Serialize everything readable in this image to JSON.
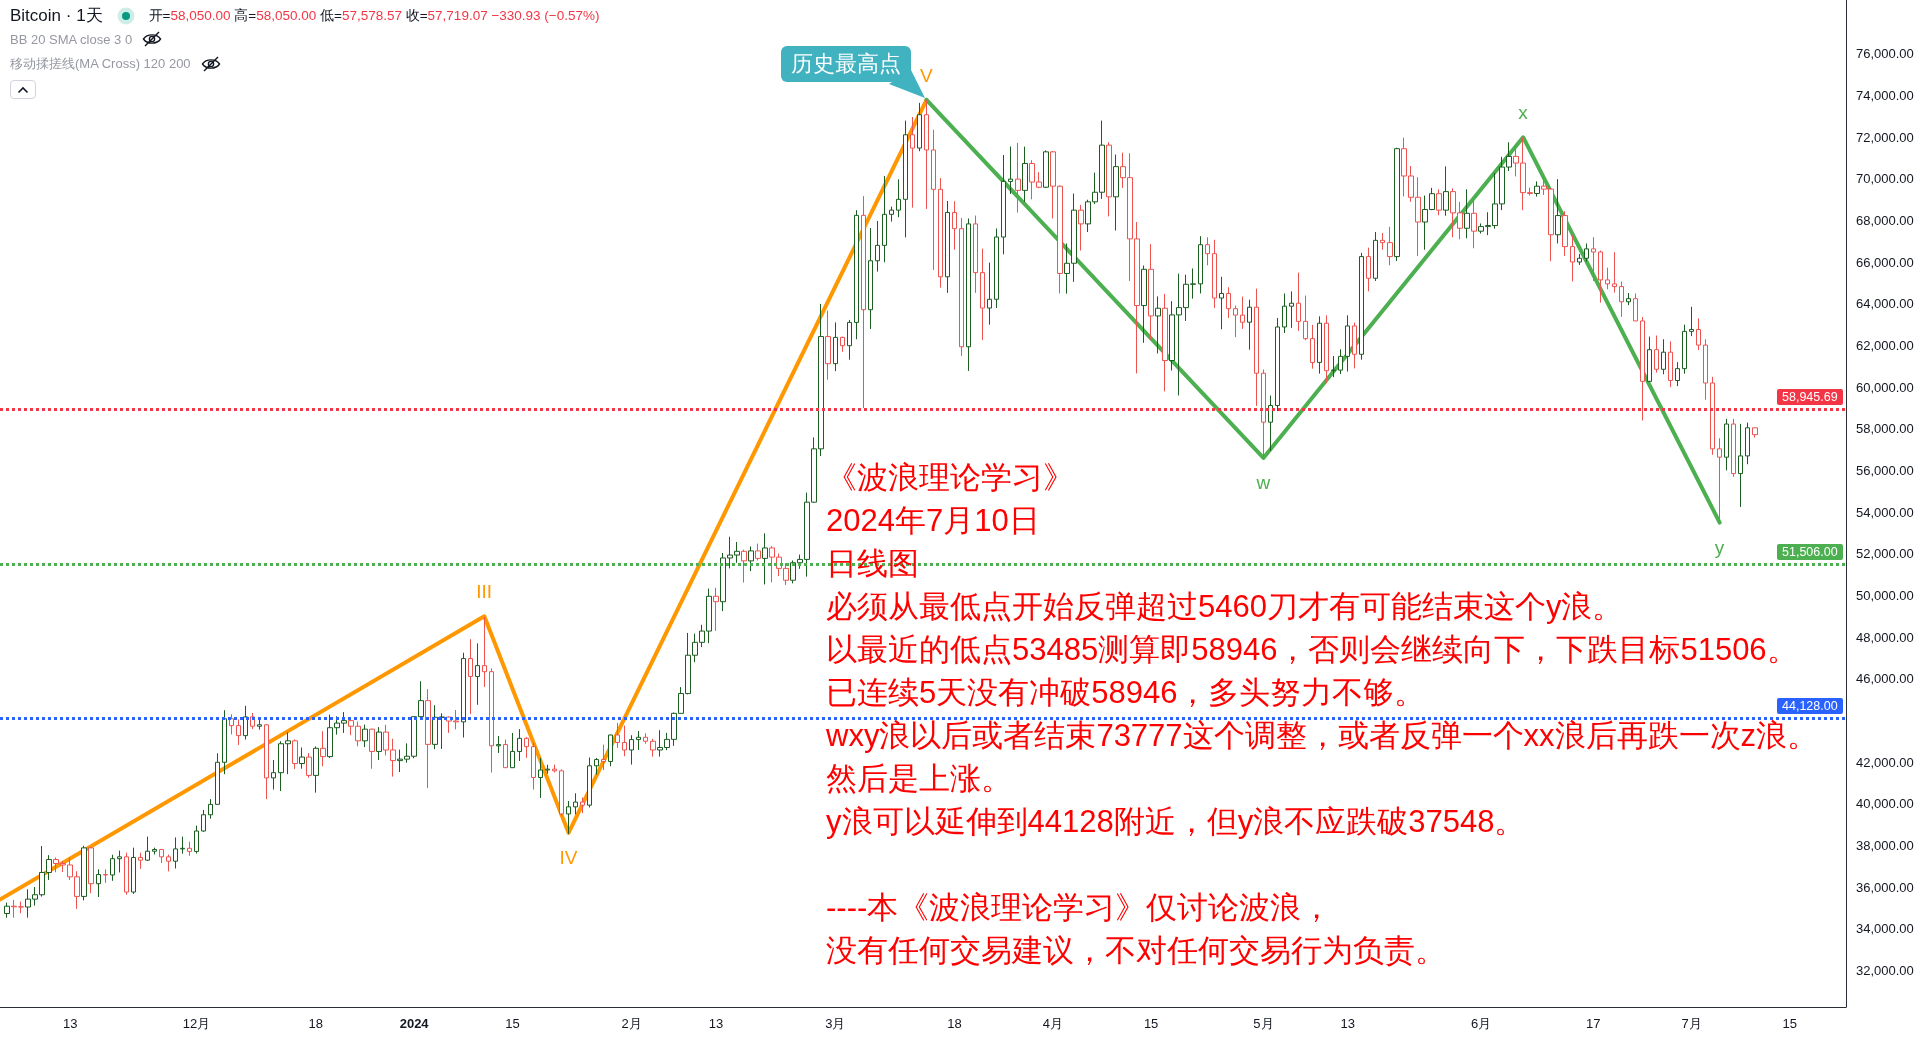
{
  "chart_data": {
    "type": "candlestick",
    "title": "Bitcoin · 1天",
    "annotations": [
      "开=58,050.00 高=58,050.00 低=57,578.57 收=57,719.07 −330.93 (−0.57%)",
      "BB 20 SMA close 3 0",
      "移动揉搓线(MA Cross) 120 200",
      "《波浪理论学习》",
      "2024年7月10日",
      "日线图",
      "必须从最低点开始反弹超过5460刀才有可能结束这个y浪。",
      "以最近的低点53485测算即58946，否则会继续向下，下跌目标51506。",
      "已连续5天没有冲破58946，多头努力不够。",
      "wxy浪以后或者结束73777这个调整，或者反弹一个xx浪后再跌一次z浪。",
      "然后是上涨。",
      "y浪可以延伸到44128附近，但y浪不应跌破37548。",
      "----本《波浪理论学习》仅讨论波浪，",
      "没有任何交易建议，不对任何交易行为负责。",
      {
        "text": "III",
        "x": "2024-01-11",
        "y": 49000
      },
      {
        "text": "IV",
        "x": "2024-01-23",
        "y": 38600
      },
      {
        "text": "V",
        "x": "2024-03-14",
        "y": 73800
      },
      {
        "text": "历史最高点",
        "x": "2024-03-14",
        "y": 73800
      },
      {
        "text": "w",
        "x": "2024-05-01",
        "y": 56600
      },
      {
        "text": "x",
        "x": "2024-06-07",
        "y": 72000
      },
      {
        "text": "y",
        "x": "2024-07-05",
        "y": 53500
      }
    ],
    "x": [
      "2023-11-04",
      "2023-11-05",
      "2023-11-06",
      "2023-11-07",
      "2023-11-08",
      "2023-11-09",
      "2023-11-10",
      "2023-11-11",
      "2023-11-12",
      "2023-11-13",
      "2023-11-14",
      "2023-11-15",
      "2023-11-16",
      "2023-11-17",
      "2023-11-18",
      "2023-11-19",
      "2023-11-20",
      "2023-11-21",
      "2023-11-22",
      "2023-11-23",
      "2023-11-24",
      "2023-11-25",
      "2023-11-26",
      "2023-11-27",
      "2023-11-28",
      "2023-11-29",
      "2023-11-30",
      "2023-12-01",
      "2023-12-02",
      "2023-12-03",
      "2023-12-04",
      "2023-12-05",
      "2023-12-06",
      "2023-12-07",
      "2023-12-08",
      "2023-12-09",
      "2023-12-10",
      "2023-12-11",
      "2023-12-12",
      "2023-12-13",
      "2023-12-14",
      "2023-12-15",
      "2023-12-16",
      "2023-12-17",
      "2023-12-18",
      "2023-12-19",
      "2023-12-20",
      "2023-12-21",
      "2023-12-22",
      "2023-12-23",
      "2023-12-24",
      "2023-12-25",
      "2023-12-26",
      "2023-12-27",
      "2023-12-28",
      "2023-12-29",
      "2023-12-30",
      "2023-12-31",
      "2024-01-01",
      "2024-01-02",
      "2024-01-03",
      "2024-01-04",
      "2024-01-05",
      "2024-01-06",
      "2024-01-07",
      "2024-01-08",
      "2024-01-09",
      "2024-01-10",
      "2024-01-11",
      "2024-01-12",
      "2024-01-13",
      "2024-01-14",
      "2024-01-15",
      "2024-01-16",
      "2024-01-17",
      "2024-01-18",
      "2024-01-19",
      "2024-01-20",
      "2024-01-21",
      "2024-01-22",
      "2024-01-23",
      "2024-01-24",
      "2024-01-25",
      "2024-01-26",
      "2024-01-27",
      "2024-01-28",
      "2024-01-29",
      "2024-01-30",
      "2024-01-31",
      "2024-02-01",
      "2024-02-02",
      "2024-02-03",
      "2024-02-04",
      "2024-02-05",
      "2024-02-06",
      "2024-02-07",
      "2024-02-08",
      "2024-02-09",
      "2024-02-10",
      "2024-02-11",
      "2024-02-12",
      "2024-02-13",
      "2024-02-14",
      "2024-02-15",
      "2024-02-16",
      "2024-02-17",
      "2024-02-18",
      "2024-02-19",
      "2024-02-20",
      "2024-02-21",
      "2024-02-22",
      "2024-02-23",
      "2024-02-24",
      "2024-02-25",
      "2024-02-26",
      "2024-02-27",
      "2024-02-28",
      "2024-02-29",
      "2024-03-01",
      "2024-03-02",
      "2024-03-03",
      "2024-03-04",
      "2024-03-05",
      "2024-03-06",
      "2024-03-07",
      "2024-03-08",
      "2024-03-09",
      "2024-03-10",
      "2024-03-11",
      "2024-03-12",
      "2024-03-13",
      "2024-03-14",
      "2024-03-15",
      "2024-03-16",
      "2024-03-17",
      "2024-03-18",
      "2024-03-19",
      "2024-03-20",
      "2024-03-21",
      "2024-03-22",
      "2024-03-23",
      "2024-03-24",
      "2024-03-25",
      "2024-03-26",
      "2024-03-27",
      "2024-03-28",
      "2024-03-29",
      "2024-03-30",
      "2024-03-31",
      "2024-04-01",
      "2024-04-02",
      "2024-04-03",
      "2024-04-04",
      "2024-04-05",
      "2024-04-06",
      "2024-04-07",
      "2024-04-08",
      "2024-04-09",
      "2024-04-10",
      "2024-04-11",
      "2024-04-12",
      "2024-04-13",
      "2024-04-14",
      "2024-04-15",
      "2024-04-16",
      "2024-04-17",
      "2024-04-18",
      "2024-04-19",
      "2024-04-20",
      "2024-04-21",
      "2024-04-22",
      "2024-04-23",
      "2024-04-24",
      "2024-04-25",
      "2024-04-26",
      "2024-04-27",
      "2024-04-28",
      "2024-04-29",
      "2024-04-30",
      "2024-05-01",
      "2024-05-02",
      "2024-05-03",
      "2024-05-04",
      "2024-05-05",
      "2024-05-06",
      "2024-05-07",
      "2024-05-08",
      "2024-05-09",
      "2024-05-10",
      "2024-05-11",
      "2024-05-12",
      "2024-05-13",
      "2024-05-14",
      "2024-05-15",
      "2024-05-16",
      "2024-05-17",
      "2024-05-18",
      "2024-05-19",
      "2024-05-20",
      "2024-05-21",
      "2024-05-22",
      "2024-05-23",
      "2024-05-24",
      "2024-05-25",
      "2024-05-26",
      "2024-05-27",
      "2024-05-28",
      "2024-05-29",
      "2024-05-30",
      "2024-05-31",
      "2024-06-01",
      "2024-06-02",
      "2024-06-03",
      "2024-06-04",
      "2024-06-05",
      "2024-06-06",
      "2024-06-07",
      "2024-06-08",
      "2024-06-09",
      "2024-06-10",
      "2024-06-11",
      "2024-06-12",
      "2024-06-13",
      "2024-06-14",
      "2024-06-15",
      "2024-06-16",
      "2024-06-17",
      "2024-06-18",
      "2024-06-19",
      "2024-06-20",
      "2024-06-21",
      "2024-06-22",
      "2024-06-23",
      "2024-06-24",
      "2024-06-25",
      "2024-06-26",
      "2024-06-27",
      "2024-06-28",
      "2024-06-29",
      "2024-06-30",
      "2024-07-01",
      "2024-07-02",
      "2024-07-03",
      "2024-07-04",
      "2024-07-05",
      "2024-07-06",
      "2024-07-07",
      "2024-07-08",
      "2024-07-09",
      "2024-07-10"
    ],
    "ohlc": [
      [
        34730,
        35250,
        34530,
        35080
      ],
      [
        35080,
        35380,
        34530,
        35050
      ],
      [
        35050,
        35300,
        34740,
        35040
      ],
      [
        35040,
        35890,
        34530,
        35420
      ],
      [
        35420,
        36000,
        35110,
        35630
      ],
      [
        35630,
        37970,
        35540,
        36700
      ],
      [
        36700,
        37530,
        36340,
        37320
      ],
      [
        37320,
        37420,
        36710,
        37130
      ],
      [
        37130,
        37230,
        36720,
        37060
      ],
      [
        37060,
        37420,
        36340,
        36490
      ],
      [
        36490,
        36760,
        34950,
        35550
      ],
      [
        35550,
        37980,
        35360,
        37880
      ],
      [
        37880,
        37930,
        35700,
        36160
      ],
      [
        36160,
        36850,
        35520,
        36600
      ],
      [
        36600,
        36850,
        36200,
        36580
      ],
      [
        36580,
        37550,
        36300,
        37360
      ],
      [
        37360,
        37750,
        36700,
        37450
      ],
      [
        37450,
        37650,
        35630,
        35760
      ],
      [
        35760,
        37890,
        35670,
        37420
      ],
      [
        37420,
        37650,
        36870,
        37290
      ],
      [
        37290,
        38420,
        37250,
        37720
      ],
      [
        37720,
        37890,
        37560,
        37800
      ],
      [
        37800,
        37820,
        37150,
        37450
      ],
      [
        37450,
        37560,
        36750,
        37240
      ],
      [
        37240,
        38380,
        36890,
        37830
      ],
      [
        37830,
        38420,
        37600,
        37860
      ],
      [
        37860,
        38180,
        37500,
        37710
      ],
      [
        37710,
        38950,
        37610,
        38690
      ],
      [
        38690,
        39700,
        38650,
        39470
      ],
      [
        39470,
        40220,
        39280,
        39970
      ],
      [
        39970,
        42420,
        39970,
        41990
      ],
      [
        41990,
        44490,
        41420,
        44080
      ],
      [
        44080,
        44300,
        43330,
        43750
      ],
      [
        43750,
        44050,
        42820,
        43270
      ],
      [
        43270,
        44700,
        43080,
        44170
      ],
      [
        44170,
        44360,
        43580,
        43720
      ],
      [
        43720,
        44040,
        43560,
        43790
      ],
      [
        43790,
        43810,
        40220,
        41240
      ],
      [
        41240,
        42100,
        40680,
        41490
      ],
      [
        41490,
        43000,
        40610,
        42880
      ],
      [
        42880,
        43420,
        41420,
        43020
      ],
      [
        43020,
        43090,
        41660,
        41930
      ],
      [
        41930,
        42700,
        41680,
        42240
      ],
      [
        42240,
        42430,
        41250,
        41360
      ],
      [
        41360,
        42750,
        40530,
        42660
      ],
      [
        42660,
        43480,
        41800,
        42260
      ],
      [
        42260,
        44280,
        42200,
        43650
      ],
      [
        43650,
        44200,
        43320,
        43870
      ],
      [
        43870,
        44400,
        43400,
        43990
      ],
      [
        43990,
        44020,
        43290,
        43720
      ],
      [
        43720,
        43940,
        42760,
        43020
      ],
      [
        43020,
        43800,
        42720,
        43580
      ],
      [
        43580,
        43600,
        41680,
        42510
      ],
      [
        42510,
        43680,
        42100,
        43440
      ],
      [
        43440,
        43790,
        42320,
        42580
      ],
      [
        42580,
        43120,
        41300,
        42070
      ],
      [
        42070,
        42600,
        41520,
        42140
      ],
      [
        42140,
        42900,
        41970,
        42280
      ],
      [
        42280,
        44180,
        42180,
        44180
      ],
      [
        44180,
        45880,
        44150,
        44950
      ],
      [
        44950,
        45500,
        40750,
        42850
      ],
      [
        42850,
        44730,
        42620,
        44150
      ],
      [
        44150,
        44340,
        42630,
        44160
      ],
      [
        44160,
        44190,
        43400,
        43970
      ],
      [
        43970,
        44500,
        43570,
        43930
      ],
      [
        43930,
        47250,
        43180,
        46970
      ],
      [
        46970,
        47900,
        44300,
        46110
      ],
      [
        46110,
        47700,
        44750,
        46630
      ],
      [
        46630,
        48970,
        45610,
        46340
      ],
      [
        46340,
        46500,
        41500,
        42780
      ],
      [
        42780,
        43250,
        42440,
        42840
      ],
      [
        42840,
        43080,
        41720,
        41730
      ],
      [
        41730,
        43400,
        41720,
        42510
      ],
      [
        42510,
        43580,
        42050,
        43140
      ],
      [
        43140,
        43200,
        42200,
        42740
      ],
      [
        42740,
        42930,
        40680,
        41260
      ],
      [
        41260,
        42200,
        40280,
        41620
      ],
      [
        41620,
        41870,
        41450,
        41660
      ],
      [
        41660,
        41880,
        41500,
        41580
      ],
      [
        41580,
        41650,
        39430,
        39510
      ],
      [
        39510,
        40130,
        38555,
        39850
      ],
      [
        39850,
        40500,
        39490,
        40080
      ],
      [
        40080,
        40300,
        39550,
        39930
      ],
      [
        39930,
        42220,
        39820,
        41820
      ],
      [
        41820,
        42200,
        41400,
        42120
      ],
      [
        42120,
        42840,
        41620,
        42030
      ],
      [
        42030,
        43310,
        41800,
        43300
      ],
      [
        43300,
        43880,
        42680,
        42940
      ],
      [
        42940,
        43750,
        42280,
        42580
      ],
      [
        42580,
        43290,
        41880,
        43080
      ],
      [
        43080,
        43490,
        42580,
        43190
      ],
      [
        43190,
        43380,
        42880,
        43000
      ],
      [
        43000,
        43120,
        42260,
        42580
      ],
      [
        42580,
        43530,
        42260,
        42700
      ],
      [
        42700,
        43400,
        42570,
        43090
      ],
      [
        43090,
        44380,
        42780,
        44340
      ],
      [
        44340,
        45600,
        44330,
        45290
      ],
      [
        45290,
        48200,
        45250,
        47130
      ],
      [
        47130,
        48170,
        46800,
        47750
      ],
      [
        47750,
        48590,
        47520,
        48290
      ],
      [
        48290,
        50330,
        47710,
        49960
      ],
      [
        49960,
        50370,
        48300,
        49700
      ],
      [
        49700,
        52040,
        49250,
        51800
      ],
      [
        51800,
        52820,
        51300,
        51940
      ],
      [
        51940,
        52570,
        51570,
        52120
      ],
      [
        52120,
        52200,
        50620,
        51660
      ],
      [
        51660,
        52350,
        51170,
        52140
      ],
      [
        52140,
        52490,
        51680,
        51780
      ],
      [
        51780,
        52980,
        50530,
        52280
      ],
      [
        52280,
        52370,
        50630,
        51840
      ],
      [
        51840,
        52010,
        50930,
        51300
      ],
      [
        51300,
        51550,
        50500,
        50730
      ],
      [
        50730,
        51680,
        50580,
        51570
      ],
      [
        51570,
        51960,
        51280,
        51730
      ],
      [
        51730,
        54940,
        50900,
        54480
      ],
      [
        54480,
        57590,
        54450,
        57040
      ],
      [
        57040,
        64000,
        56690,
        62430
      ],
      [
        62430,
        63680,
        60360,
        61130
      ],
      [
        61130,
        63110,
        60770,
        62390
      ],
      [
        62390,
        62430,
        61700,
        61990
      ],
      [
        61990,
        63230,
        61320,
        63110
      ],
      [
        63110,
        68500,
        62300,
        68250
      ],
      [
        68250,
        69170,
        59000,
        63720
      ],
      [
        63720,
        67640,
        62790,
        66070
      ],
      [
        66070,
        67980,
        65550,
        66810
      ],
      [
        66810,
        70140,
        66000,
        68300
      ],
      [
        68300,
        68670,
        67950,
        68500
      ],
      [
        68500,
        69980,
        68160,
        69020
      ],
      [
        69020,
        72800,
        67190,
        72120
      ],
      [
        72120,
        72970,
        68620,
        71480
      ],
      [
        71480,
        73650,
        71330,
        73080
      ],
      [
        73080,
        73777,
        68560,
        71390
      ],
      [
        71390,
        72360,
        65630,
        69500
      ],
      [
        69500,
        70040,
        64780,
        65300
      ],
      [
        65300,
        68940,
        64530,
        68390
      ],
      [
        68390,
        68930,
        66600,
        67610
      ],
      [
        67610,
        68120,
        61500,
        61940
      ],
      [
        61940,
        68100,
        60780,
        67840
      ],
      [
        67840,
        68240,
        64530,
        65500
      ],
      [
        65500,
        66650,
        62260,
        63800
      ],
      [
        63800,
        65980,
        63000,
        64220
      ],
      [
        64220,
        67620,
        63800,
        67210
      ],
      [
        67210,
        71150,
        66380,
        69880
      ],
      [
        69880,
        71560,
        69280,
        69990
      ],
      [
        69990,
        71730,
        68380,
        69450
      ],
      [
        69450,
        71550,
        68900,
        70740
      ],
      [
        70740,
        70900,
        69020,
        69850
      ],
      [
        69850,
        70320,
        69550,
        69600
      ],
      [
        69600,
        71370,
        69560,
        71300
      ],
      [
        71300,
        71340,
        68100,
        69650
      ],
      [
        69650,
        69690,
        64500,
        65460
      ],
      [
        65460,
        66900,
        64490,
        65950
      ],
      [
        65950,
        69300,
        65060,
        68500
      ],
      [
        68500,
        68750,
        66560,
        67840
      ],
      [
        67840,
        69000,
        67450,
        68900
      ],
      [
        68900,
        70300,
        68790,
        69360
      ],
      [
        69360,
        72800,
        69040,
        71620
      ],
      [
        71620,
        71760,
        68200,
        69140
      ],
      [
        69140,
        71170,
        67520,
        70590
      ],
      [
        70590,
        71260,
        69570,
        70060
      ],
      [
        70060,
        71230,
        65100,
        67120
      ],
      [
        67120,
        67930,
        60660,
        63920
      ],
      [
        63920,
        65840,
        62130,
        65660
      ],
      [
        65660,
        66870,
        62280,
        63420
      ],
      [
        63420,
        64360,
        61620,
        63790
      ],
      [
        63790,
        64480,
        59800,
        61280
      ],
      [
        61280,
        64130,
        60800,
        63470
      ],
      [
        63470,
        65450,
        59600,
        63820
      ],
      [
        63820,
        65400,
        63180,
        64940
      ],
      [
        64940,
        65700,
        64250,
        64960
      ],
      [
        64960,
        67250,
        64500,
        66840
      ],
      [
        66840,
        67200,
        65850,
        66410
      ],
      [
        66410,
        67080,
        63800,
        64280
      ],
      [
        64280,
        65300,
        62780,
        64500
      ],
      [
        64500,
        64800,
        63320,
        63770
      ],
      [
        63770,
        63920,
        62400,
        63460
      ],
      [
        63460,
        64350,
        62800,
        63120
      ],
      [
        63120,
        64200,
        61800,
        63840
      ],
      [
        63840,
        64730,
        59100,
        60670
      ],
      [
        60670,
        60850,
        56552,
        58320
      ],
      [
        58320,
        59600,
        56940,
        59120
      ],
      [
        59120,
        63320,
        58850,
        62890
      ],
      [
        62890,
        64500,
        62600,
        63890
      ],
      [
        63890,
        64600,
        62850,
        64030
      ],
      [
        64030,
        65500,
        62700,
        63160
      ],
      [
        63160,
        64400,
        62250,
        62330
      ],
      [
        62330,
        62990,
        60890,
        61190
      ],
      [
        61190,
        63400,
        60650,
        63070
      ],
      [
        63070,
        63450,
        60190,
        60790
      ],
      [
        60790,
        61500,
        60480,
        60820
      ],
      [
        60820,
        61820,
        60630,
        61480
      ],
      [
        61480,
        63450,
        60750,
        62940
      ],
      [
        62940,
        63100,
        60900,
        61580
      ],
      [
        61580,
        66450,
        61320,
        66270
      ],
      [
        66270,
        66700,
        64600,
        65230
      ],
      [
        65230,
        67450,
        65100,
        67050
      ],
      [
        67050,
        67400,
        66600,
        66940
      ],
      [
        66940,
        67700,
        65850,
        66270
      ],
      [
        66270,
        71500,
        66060,
        71450
      ],
      [
        71450,
        71980,
        69160,
        70140
      ],
      [
        70140,
        70620,
        68900,
        69120
      ],
      [
        69120,
        70080,
        66300,
        67930
      ],
      [
        67930,
        69200,
        66600,
        68530
      ],
      [
        68530,
        69570,
        68500,
        69290
      ],
      [
        69290,
        69500,
        68250,
        68500
      ],
      [
        68500,
        70600,
        68230,
        69390
      ],
      [
        69390,
        69550,
        67200,
        68370
      ],
      [
        68370,
        68900,
        67100,
        67630
      ],
      [
        67630,
        69500,
        67150,
        68350
      ],
      [
        68350,
        69000,
        66670,
        67490
      ],
      [
        67490,
        67860,
        67380,
        67710
      ],
      [
        67710,
        68400,
        67300,
        67760
      ],
      [
        67760,
        70280,
        67610,
        68800
      ],
      [
        68800,
        71060,
        68500,
        70570
      ],
      [
        70570,
        71760,
        70380,
        71080
      ],
      [
        71080,
        71620,
        70120,
        70760
      ],
      [
        70760,
        71997,
        68500,
        69340
      ],
      [
        69340,
        69580,
        69200,
        69300
      ],
      [
        69300,
        69880,
        69150,
        69650
      ],
      [
        69650,
        70150,
        69230,
        69510
      ],
      [
        69510,
        69560,
        66050,
        67320
      ],
      [
        67320,
        69990,
        66900,
        68240
      ],
      [
        68240,
        68450,
        66300,
        66750
      ],
      [
        66750,
        67300,
        65080,
        66010
      ],
      [
        66010,
        66400,
        65870,
        66190
      ],
      [
        66190,
        66900,
        66030,
        66640
      ],
      [
        66640,
        67200,
        65100,
        66490
      ],
      [
        66490,
        66560,
        64060,
        65150
      ],
      [
        65150,
        65740,
        64700,
        64960
      ],
      [
        64960,
        66480,
        64540,
        64830
      ],
      [
        64830,
        65070,
        63380,
        64100
      ],
      [
        64100,
        64520,
        63940,
        64250
      ],
      [
        64250,
        64500,
        63170,
        63180
      ],
      [
        63180,
        63370,
        58400,
        60280
      ],
      [
        60280,
        62430,
        60250,
        61800
      ],
      [
        61800,
        62480,
        60700,
        60860
      ],
      [
        60860,
        62300,
        60620,
        61680
      ],
      [
        61680,
        62200,
        60000,
        60320
      ],
      [
        60320,
        61200,
        60050,
        60890
      ],
      [
        60890,
        63000,
        60650,
        62680
      ],
      [
        62680,
        63860,
        62450,
        62770
      ],
      [
        62770,
        63300,
        61780,
        62020
      ],
      [
        62020,
        62300,
        59400,
        60200
      ],
      [
        60200,
        60500,
        56750,
        57040
      ],
      [
        57040,
        57550,
        53485,
        56640
      ],
      [
        56640,
        58480,
        56000,
        58230
      ],
      [
        58230,
        58480,
        55700,
        55850
      ],
      [
        55850,
        58240,
        54250,
        56700
      ],
      [
        56700,
        58300,
        56300,
        58050
      ],
      [
        58050,
        58050,
        57578.57,
        57719.07
      ]
    ],
    "colors": [
      "#1b5e20",
      "#ef5350",
      "#ef5350",
      "#1b5e20",
      "#1b5e20",
      "#1b5e20",
      "#1b5e20",
      "#ef5350",
      "#ef5350",
      "#ef5350",
      "#ef5350",
      "#1b5e20",
      "#ef5350",
      "#1b5e20",
      "#ef5350",
      "#1b5e20",
      "#1b5e20",
      "#ef5350",
      "#1b5e20",
      "#ef5350",
      "#1b5e20",
      "#1b5e20",
      "#ef5350",
      "#ef5350",
      "#1b5e20",
      "#1b5e20",
      "#ef5350",
      "#1b5e20",
      "#1b5e20",
      "#1b5e20",
      "#1b5e20",
      "#1b5e20",
      "#ef5350",
      "#ef5350",
      "#1b5e20",
      "#ef5350",
      "#1b5e20",
      "#ef5350",
      "#1b5e20",
      "#1b5e20",
      "#1b5e20",
      "#ef5350",
      "#1b5e20",
      "#ef5350",
      "#1b5e20",
      "#ef5350",
      "#1b5e20",
      "#1b5e20",
      "#1b5e20",
      "#ef5350",
      "#ef5350",
      "#1b5e20",
      "#ef5350",
      "#1b5e20",
      "#ef5350",
      "#ef5350",
      "#1b5e20",
      "#1b5e20",
      "#1b5e20",
      "#1b5e20",
      "#ef5350",
      "#1b5e20",
      "#1b5e20",
      "#ef5350",
      "#ef5350",
      "#1b5e20",
      "#ef5350",
      "#1b5e20",
      "#ef5350",
      "#ef5350",
      "#1b5e20",
      "#ef5350",
      "#1b5e20",
      "#1b5e20",
      "#ef5350",
      "#ef5350",
      "#1b5e20",
      "#1b5e20",
      "#ef5350",
      "#ef5350",
      "#1b5e20",
      "#1b5e20",
      "#ef5350",
      "#1b5e20",
      "#1b5e20",
      "#ef5350",
      "#1b5e20",
      "#ef5350",
      "#ef5350",
      "#1b5e20",
      "#1b5e20",
      "#ef5350",
      "#ef5350",
      "#1b5e20",
      "#1b5e20",
      "#1b5e20",
      "#1b5e20",
      "#1b5e20",
      "#1b5e20",
      "#1b5e20",
      "#1b5e20",
      "#ef5350",
      "#1b5e20",
      "#1b5e20",
      "#1b5e20",
      "#ef5350",
      "#1b5e20",
      "#ef5350",
      "#1b5e20",
      "#ef5350",
      "#ef5350",
      "#ef5350",
      "#1b5e20",
      "#1b5e20",
      "#1b5e20",
      "#1b5e20",
      "#1b5e20",
      "#ef5350",
      "#1b5e20",
      "#ef5350",
      "#1b5e20",
      "#1b5e20",
      "#ef5350",
      "#1b5e20",
      "#1b5e20",
      "#1b5e20",
      "#1b5e20",
      "#1b5e20",
      "#1b5e20",
      "#ef5350",
      "#1b5e20",
      "#ef5350",
      "#ef5350",
      "#ef5350",
      "#1b5e20",
      "#ef5350",
      "#ef5350",
      "#1b5e20",
      "#ef5350",
      "#ef5350",
      "#1b5e20",
      "#1b5e20",
      "#1b5e20",
      "#1b5e20",
      "#ef5350",
      "#1b5e20",
      "#ef5350",
      "#ef5350",
      "#1b5e20",
      "#ef5350",
      "#ef5350",
      "#1b5e20",
      "#1b5e20",
      "#ef5350",
      "#1b5e20",
      "#1b5e20",
      "#1b5e20",
      "#ef5350",
      "#1b5e20",
      "#ef5350",
      "#ef5350",
      "#ef5350",
      "#1b5e20",
      "#ef5350",
      "#1b5e20",
      "#ef5350",
      "#1b5e20",
      "#1b5e20",
      "#1b5e20",
      "#1b5e20",
      "#1b5e20",
      "#ef5350",
      "#ef5350",
      "#1b5e20",
      "#ef5350",
      "#ef5350",
      "#ef5350",
      "#1b5e20",
      "#ef5350",
      "#ef5350",
      "#1b5e20",
      "#1b5e20",
      "#1b5e20",
      "#1b5e20",
      "#ef5350",
      "#ef5350",
      "#ef5350",
      "#1b5e20",
      "#ef5350",
      "#1b5e20",
      "#1b5e20",
      "#1b5e20",
      "#ef5350",
      "#1b5e20",
      "#ef5350",
      "#1b5e20",
      "#ef5350",
      "#ef5350",
      "#1b5e20",
      "#ef5350",
      "#ef5350",
      "#ef5350",
      "#1b5e20",
      "#1b5e20",
      "#ef5350",
      "#1b5e20",
      "#ef5350",
      "#ef5350",
      "#1b5e20",
      "#ef5350",
      "#1b5e20",
      "#1b5e20",
      "#1b5e20",
      "#1b5e20",
      "#1b5e20",
      "#ef5350",
      "#ef5350",
      "#ef5350",
      "#1b5e20",
      "#ef5350",
      "#ef5350",
      "#1b5e20",
      "#ef5350",
      "#ef5350",
      "#1b5e20",
      "#1b5e20",
      "#ef5350",
      "#ef5350",
      "#ef5350",
      "#ef5350",
      "#ef5350",
      "#1b5e20",
      "#ef5350",
      "#ef5350",
      "#1b5e20",
      "#ef5350",
      "#1b5e20",
      "#ef5350",
      "#1b5e20",
      "#1b5e20",
      "#1b5e20",
      "#ef5350",
      "#ef5350",
      "#ef5350",
      "#ef5350",
      "#1b5e20",
      "#ef5350",
      "#1b5e20",
      "#1b5e20",
      "#ef5350"
    ],
    "series": [
      {
        "type": "line",
        "color": "#ff9800",
        "x": [
          "2023-11-03",
          "2024-01-11",
          "2024-01-23",
          "2024-03-14"
        ],
        "values": [
          35400,
          49000,
          38600,
          73800
        ]
      },
      {
        "type": "line",
        "color": "#4caf50",
        "x": [
          "2024-03-14",
          "2024-05-01",
          "2024-06-07",
          "2024-07-05"
        ],
        "values": [
          73800,
          56600,
          72000,
          53500
        ]
      }
    ],
    "xlim": [
      "2023-11-03",
      "2024-07-23"
    ],
    "xticks": [
      {
        "value": "2023-11-13",
        "label": "13"
      },
      {
        "value": "2023-12-01",
        "label": "12月"
      },
      {
        "value": "2023-12-18",
        "label": "18"
      },
      {
        "value": "2024-01-01",
        "label": "2024"
      },
      {
        "value": "2024-01-15",
        "label": "15"
      },
      {
        "value": "2024-02-01",
        "label": "2月"
      },
      {
        "value": "2024-02-13",
        "label": "13"
      },
      {
        "value": "2024-03-01",
        "label": "3月"
      },
      {
        "value": "2024-03-18",
        "label": "18"
      },
      {
        "value": "2024-04-01",
        "label": "4月"
      },
      {
        "value": "2024-04-15",
        "label": "15"
      },
      {
        "value": "2024-05-01",
        "label": "5月"
      },
      {
        "value": "2024-05-13",
        "label": "13"
      },
      {
        "value": "2024-06-01",
        "label": "6月"
      },
      {
        "value": "2024-06-17",
        "label": "17"
      },
      {
        "value": "2024-07-01",
        "label": "7月"
      },
      {
        "value": "2024-07-15",
        "label": "15"
      }
    ],
    "ylim": [
      30240,
      78590
    ],
    "yticks": [
      {
        "value": 32000,
        "label": "32,000.00"
      },
      {
        "value": 34000,
        "label": "34,000.00"
      },
      {
        "value": 36000,
        "label": "36,000.00"
      },
      {
        "value": 38000,
        "label": "38,000.00"
      },
      {
        "value": 40000,
        "label": "40,000.00"
      },
      {
        "value": 42000,
        "label": "42,000.00"
      },
      {
        "value": 46000,
        "label": "46,000.00"
      },
      {
        "value": 48000,
        "label": "48,000.00"
      },
      {
        "value": 50000,
        "label": "50,000.00"
      },
      {
        "value": 52000,
        "label": "52,000.00"
      },
      {
        "value": 54000,
        "label": "54,000.00"
      },
      {
        "value": 56000,
        "label": "56,000.00"
      },
      {
        "value": 58000,
        "label": "58,000.00"
      },
      {
        "value": 60000,
        "label": "60,000.00"
      },
      {
        "value": 62000,
        "label": "62,000.00"
      },
      {
        "value": 64000,
        "label": "64,000.00"
      },
      {
        "value": 66000,
        "label": "66,000.00"
      },
      {
        "value": 68000,
        "label": "68,000.00"
      },
      {
        "value": 70000,
        "label": "70,000.00"
      },
      {
        "value": 72000,
        "label": "72,000.00"
      },
      {
        "value": 74000,
        "label": "74,000.00"
      },
      {
        "value": 76000,
        "label": "76,000.00"
      }
    ],
    "ref_lines": [
      {
        "axis": "y",
        "value": 58945.69,
        "label": "58,945.69",
        "color": "#f23645",
        "line_style": "dotted"
      },
      {
        "axis": "y",
        "value": 51506,
        "label": "51,506.00",
        "color": "#4caf50",
        "line_style": "dotted"
      },
      {
        "axis": "y",
        "value": 44128,
        "label": "44,128.00",
        "color": "#2962ff",
        "line_style": "dotted"
      }
    ],
    "grid": false
  }
}
